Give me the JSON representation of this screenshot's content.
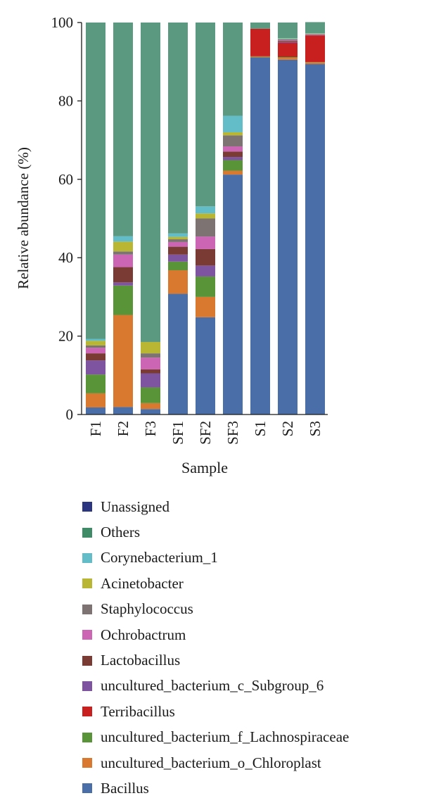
{
  "chart_data": {
    "type": "bar",
    "stacked": true,
    "title": "",
    "xlabel": "Sample",
    "ylabel": "Relative abundance (%)",
    "ylim": [
      0,
      100
    ],
    "yticks": [
      0,
      20,
      40,
      60,
      80,
      100
    ],
    "grid": false,
    "legend_placement": "bottom",
    "categories": [
      "F1",
      "F2",
      "F3",
      "SF1",
      "SF2",
      "SF3",
      "S1",
      "S2",
      "S3"
    ],
    "series": [
      {
        "name": "Bacillus",
        "color": "#4a6fa8",
        "values": [
          1.8,
          1.9,
          1.4,
          30.8,
          24.8,
          61.2,
          91.1,
          90.5,
          89.4
        ]
      },
      {
        "name": "uncultured_bacterium_o_Chloroplast",
        "color": "#d9782f",
        "values": [
          3.6,
          23.5,
          1.5,
          6.0,
          5.2,
          1.0,
          0.2,
          0.5,
          0.4
        ]
      },
      {
        "name": "uncultured_bacterium_f_Lachnospiraceae",
        "color": "#5a9438",
        "values": [
          4.8,
          7.5,
          4.0,
          2.2,
          5.2,
          2.7,
          0.1,
          0.2,
          0.1
        ]
      },
      {
        "name": "Terribacillus",
        "color": "#c8201f",
        "values": [
          0.0,
          0.0,
          0.0,
          0.0,
          0.0,
          0.0,
          7.0,
          3.6,
          6.8
        ]
      },
      {
        "name": "uncultured_bacterium_c_Subgroup_6",
        "color": "#7e54a0",
        "values": [
          3.6,
          0.8,
          3.6,
          1.8,
          2.8,
          0.8,
          0.0,
          0.2,
          0.1
        ]
      },
      {
        "name": "Lactobacillus",
        "color": "#7a3b34",
        "values": [
          1.8,
          3.9,
          1.0,
          2.0,
          4.2,
          1.4,
          0.0,
          0.3,
          0.1
        ]
      },
      {
        "name": "Ochrobactrum",
        "color": "#cc66b4",
        "values": [
          1.4,
          3.2,
          3.0,
          1.2,
          3.2,
          1.3,
          0.0,
          0.2,
          0.1
        ]
      },
      {
        "name": "Staphylococcus",
        "color": "#7d7373",
        "values": [
          0.6,
          0.8,
          1.1,
          0.7,
          4.6,
          2.8,
          0.0,
          0.2,
          0.1
        ]
      },
      {
        "name": "Acinetobacter",
        "color": "#b8b632",
        "values": [
          1.2,
          2.5,
          2.9,
          0.6,
          1.3,
          0.8,
          0.0,
          0.1,
          0.1
        ]
      },
      {
        "name": "Corynebacterium_1",
        "color": "#63bdc8",
        "values": [
          0.5,
          1.4,
          0.0,
          0.9,
          1.8,
          4.2,
          0.0,
          0.2,
          0.1
        ]
      },
      {
        "name": "Others",
        "color": "#5b9980",
        "values": [
          80.7,
          54.5,
          81.5,
          53.8,
          46.9,
          23.8,
          1.6,
          4.0,
          2.8
        ]
      },
      {
        "name": "Unassigned",
        "color": "#2c3580",
        "values": [
          0.0,
          0.0,
          0.0,
          0.0,
          0.0,
          0.0,
          0.0,
          0.0,
          0.0
        ]
      }
    ]
  },
  "legend": {
    "items": [
      {
        "label": "Unassigned",
        "color": "#2c3580"
      },
      {
        "label": "Others",
        "color": "#3f8a67"
      },
      {
        "label": "Corynebacterium_1",
        "color": "#63bdc8"
      },
      {
        "label": "Acinetobacter",
        "color": "#b8b632"
      },
      {
        "label": "Staphylococcus",
        "color": "#7d7373"
      },
      {
        "label": "Ochrobactrum",
        "color": "#cc66b4"
      },
      {
        "label": "Lactobacillus",
        "color": "#7a3b34"
      },
      {
        "label": "uncultured_bacterium_c_Subgroup_6",
        "color": "#7e54a0"
      },
      {
        "label": "Terribacillus",
        "color": "#c8201f"
      },
      {
        "label": "uncultured_bacterium_f_Lachnospiraceae",
        "color": "#5a9438"
      },
      {
        "label": "uncultured_bacterium_o_Chloroplast",
        "color": "#d9782f"
      },
      {
        "label": "Bacillus",
        "color": "#4a6fa8"
      }
    ]
  }
}
